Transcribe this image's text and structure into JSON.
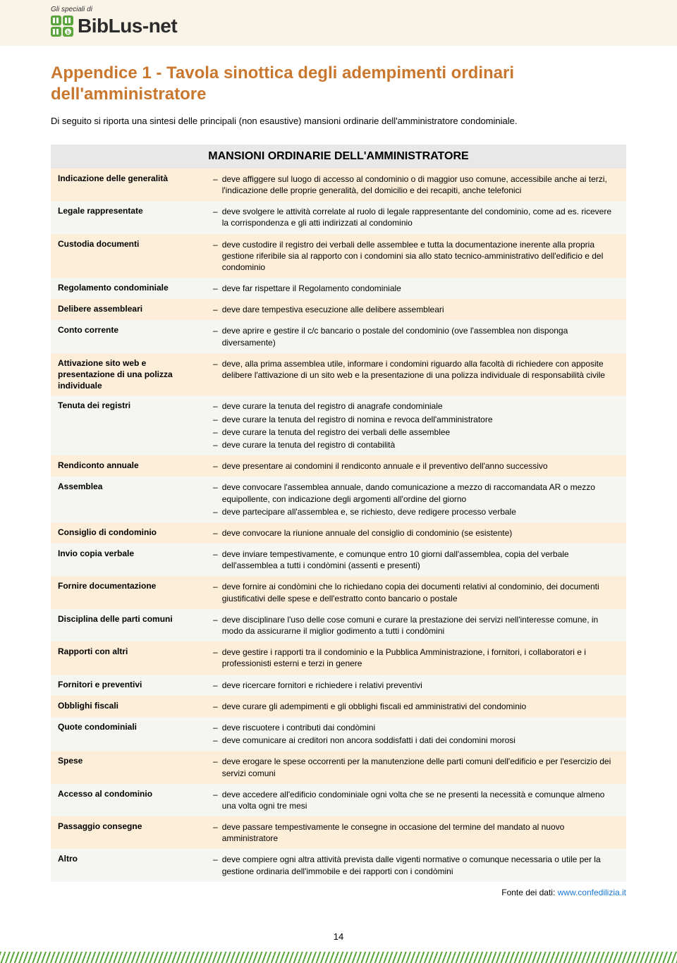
{
  "header": {
    "speciali": "Gli speciali di",
    "logo_text": "BibLus-net"
  },
  "title": "Appendice 1 - Tavola sinottica degli adempimenti ordinari dell'amministratore",
  "intro": "Di seguito si riporta una sintesi delle principali (non esaustive) mansioni ordinarie dell'amministratore condominiale.",
  "table": {
    "title": "MANSIONI ORDINARIE DELL'AMMINISTRATORE",
    "rows": [
      {
        "label": "Indicazione delle generalità",
        "items": [
          "deve affiggere sul luogo di accesso al condominio o di maggior uso comune, accessibile anche ai terzi, l'indicazione delle proprie generalità, del domicilio e dei recapiti, anche telefonici"
        ]
      },
      {
        "label": "Legale rappresentate",
        "items": [
          "deve svolgere le attività correlate al ruolo di legale rappresentante del condominio, come ad es. ricevere la corrispondenza e gli atti indirizzati al condominio"
        ]
      },
      {
        "label": "Custodia documenti",
        "items": [
          "deve custodire il registro dei verbali delle assemblee e tutta la documentazione inerente alla propria gestione riferibile sia al rapporto con i condomini sia allo stato tecnico-amministrativo dell'edificio e del condominio"
        ]
      },
      {
        "label": "Regolamento condominiale",
        "items": [
          "deve far rispettare il Regolamento condominiale"
        ]
      },
      {
        "label": "Delibere assembleari",
        "items": [
          "deve dare tempestiva esecuzione alle delibere assembleari"
        ]
      },
      {
        "label": "Conto corrente",
        "items": [
          "deve aprire e gestire il c/c bancario o postale del condominio (ove l'assemblea non disponga diversamente)"
        ]
      },
      {
        "label": "Attivazione sito web e presentazione di una polizza individuale",
        "items": [
          "deve, alla prima assemblea utile, informare i condomini riguardo alla facoltà di richiedere con apposite delibere l'attivazione di un sito web e la presentazione di una polizza individuale di responsabilità civile"
        ]
      },
      {
        "label": "Tenuta dei registri",
        "items": [
          "deve curare la tenuta del registro di anagrafe condominiale",
          "deve curare la tenuta del registro di nomina e revoca dell'amministratore",
          "deve curare la tenuta del registro dei verbali delle assemblee",
          "deve curare la tenuta del registro di contabilità"
        ]
      },
      {
        "label": "Rendiconto annuale",
        "items": [
          "deve presentare ai condomini il rendiconto annuale e il preventivo dell'anno successivo"
        ]
      },
      {
        "label": "Assemblea",
        "items": [
          "deve convocare l'assemblea annuale, dando comunicazione a mezzo di raccomandata AR o mezzo equipollente, con indicazione degli argomenti all'ordine del giorno",
          "deve partecipare all'assemblea e, se richiesto, deve redigere processo verbale"
        ]
      },
      {
        "label": "Consiglio di condominio",
        "items": [
          "deve convocare la riunione annuale del consiglio di condominio (se esistente)"
        ]
      },
      {
        "label": "Invio copia verbale",
        "items": [
          "deve inviare tempestivamente, e comunque entro 10 giorni dall'assemblea, copia del verbale dell'assemblea a tutti i condòmini (assenti e presenti)"
        ]
      },
      {
        "label": "Fornire documentazione",
        "items": [
          "deve fornire ai condòmini che lo richiedano copia dei documenti relativi al condominio, dei documenti giustificativi delle spese e dell'estratto conto bancario o postale"
        ]
      },
      {
        "label": "Disciplina delle parti comuni",
        "items": [
          "deve disciplinare l'uso delle cose comuni e curare la prestazione dei servizi nell'interesse comune, in modo da assicurarne il miglior godimento a tutti i condòmini"
        ]
      },
      {
        "label": "Rapporti con altri",
        "items": [
          "deve gestire i rapporti tra il condominio e la Pubblica Amministrazione, i fornitori, i collaboratori e i professionisti esterni e terzi in genere"
        ]
      },
      {
        "label": "Fornitori e preventivi",
        "items": [
          "deve ricercare fornitori e richiedere i relativi preventivi"
        ]
      },
      {
        "label": "Obblighi fiscali",
        "items": [
          "deve curare gli adempimenti e gli obblighi fiscali ed amministrativi del condominio"
        ]
      },
      {
        "label": "Quote condominiali",
        "items": [
          "deve riscuotere i contributi dai condòmini",
          "deve comunicare ai creditori non ancora soddisfatti i dati dei condomini morosi"
        ]
      },
      {
        "label": "Spese",
        "items": [
          "deve erogare le spese occorrenti per la manutenzione delle parti comuni dell'edificio e per l'esercizio dei servizi comuni"
        ]
      },
      {
        "label": "Accesso al condominio",
        "items": [
          "deve accedere all'edificio condominiale ogni volta che se ne presenti la necessità e comunque almeno una volta ogni tre mesi"
        ]
      },
      {
        "label": "Passaggio consegne",
        "items": [
          "deve passare tempestivamente le consegne in occasione del termine del mandato al nuovo amministratore"
        ]
      },
      {
        "label": "Altro",
        "items": [
          "deve compiere ogni altra attività prevista dalle vigenti normative o comunque necessaria o utile per la gestione ordinaria dell'immobile e dei rapporti con i condòmini"
        ]
      }
    ]
  },
  "source_prefix": "Fonte dei dati: ",
  "source_link": "www.confedilizia.it",
  "page_number": "14",
  "colors": {
    "title": "#c9772e",
    "header_bg": "#f9f3e8",
    "row_odd": "#fdeed9",
    "row_even": "#f5f5f1",
    "table_title_bg": "#e8e8e8",
    "link": "#1976d2",
    "hatch": "#5aa63c"
  }
}
